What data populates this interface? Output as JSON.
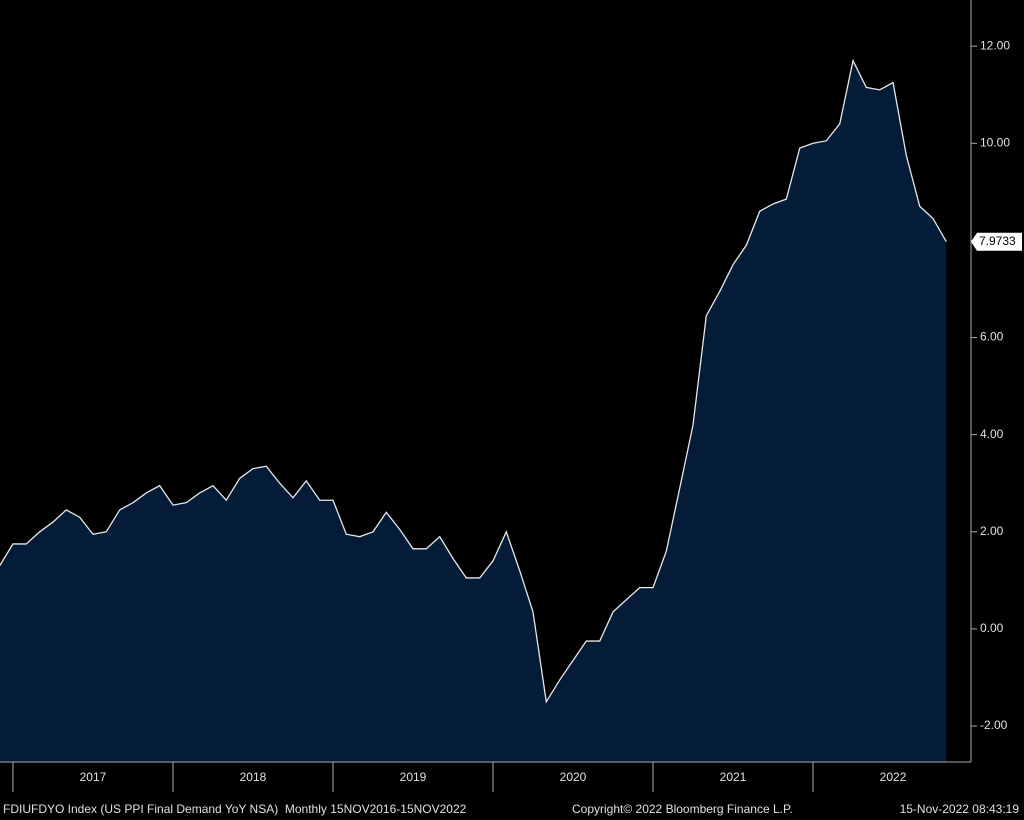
{
  "chart_data": {
    "type": "area",
    "series": [
      {
        "name": "FDIUFDYO Index",
        "color": "#e8e8e8",
        "fill": "#041c38",
        "x": [
          2016.917,
          2017.0,
          2017.083,
          2017.167,
          2017.25,
          2017.333,
          2017.417,
          2017.5,
          2017.583,
          2017.667,
          2017.75,
          2017.833,
          2017.917,
          2018.0,
          2018.083,
          2018.167,
          2018.25,
          2018.333,
          2018.417,
          2018.5,
          2018.583,
          2018.667,
          2018.75,
          2018.833,
          2018.917,
          2019.0,
          2019.083,
          2019.167,
          2019.25,
          2019.333,
          2019.417,
          2019.5,
          2019.583,
          2019.667,
          2019.75,
          2019.833,
          2019.917,
          2020.0,
          2020.083,
          2020.167,
          2020.25,
          2020.333,
          2020.417,
          2020.5,
          2020.583,
          2020.667,
          2020.75,
          2020.833,
          2020.917,
          2021.0,
          2021.083,
          2021.167,
          2021.25,
          2021.333,
          2021.417,
          2021.5,
          2021.583,
          2021.667,
          2021.75,
          2021.833,
          2021.917,
          2022.0,
          2022.083,
          2022.167,
          2022.25,
          2022.333,
          2022.417,
          2022.5,
          2022.583,
          2022.667,
          2022.75,
          2022.833
        ],
        "values": [
          1.3,
          1.75,
          1.75,
          2.0,
          2.2,
          2.45,
          2.3,
          1.95,
          2.0,
          2.45,
          2.6,
          2.8,
          2.95,
          2.55,
          2.6,
          2.8,
          2.95,
          2.65,
          3.1,
          3.3,
          3.35,
          3.0,
          2.7,
          3.05,
          2.65,
          2.65,
          1.95,
          1.9,
          2.0,
          2.4,
          2.05,
          1.65,
          1.65,
          1.9,
          1.45,
          1.05,
          1.05,
          1.4,
          2.0,
          1.2,
          0.35,
          -1.5,
          -1.05,
          -0.65,
          -0.25,
          -0.25,
          0.35,
          0.6,
          0.85,
          0.85,
          1.6,
          2.9,
          4.2,
          6.45,
          6.95,
          7.5,
          7.9,
          8.6,
          8.75,
          8.85,
          9.9,
          10.0,
          10.05,
          10.4,
          11.7,
          11.15,
          11.1,
          11.25,
          9.75,
          8.7,
          8.45,
          7.9733
        ]
      }
    ],
    "xlim": [
      2016.919,
      2022.981
    ],
    "xticks": [
      {
        "value": 2017.5,
        "label": "2017"
      },
      {
        "value": 2018.5,
        "label": "2018"
      },
      {
        "value": 2019.5,
        "label": "2019"
      },
      {
        "value": 2020.5,
        "label": "2020"
      },
      {
        "value": 2021.5,
        "label": "2021"
      },
      {
        "value": 2022.5,
        "label": "2022"
      }
    ],
    "x_separators": [
      2017,
      2018,
      2019,
      2020,
      2021,
      2022
    ],
    "ylim": [
      -2.74,
      12.95
    ],
    "yticks": [
      {
        "value": 12,
        "label": "12.00"
      },
      {
        "value": 10,
        "label": "10.00"
      },
      {
        "value": 8,
        "label": "8.00"
      },
      {
        "value": 6,
        "label": "6.00"
      },
      {
        "value": 4,
        "label": "4.00"
      },
      {
        "value": 2,
        "label": "2.00"
      },
      {
        "value": 0,
        "label": "0.00"
      },
      {
        "value": -2,
        "label": "-2.00"
      }
    ],
    "footer": {
      "source": "FDIUFDYO Index (US PPI Final Demand YoY NSA)  Monthly 15NOV2016-15NOV2022",
      "copyright": "Copyright© 2022 Bloomberg Finance L.P.",
      "timestamp": "15-Nov-2022 08:43:19"
    }
  }
}
